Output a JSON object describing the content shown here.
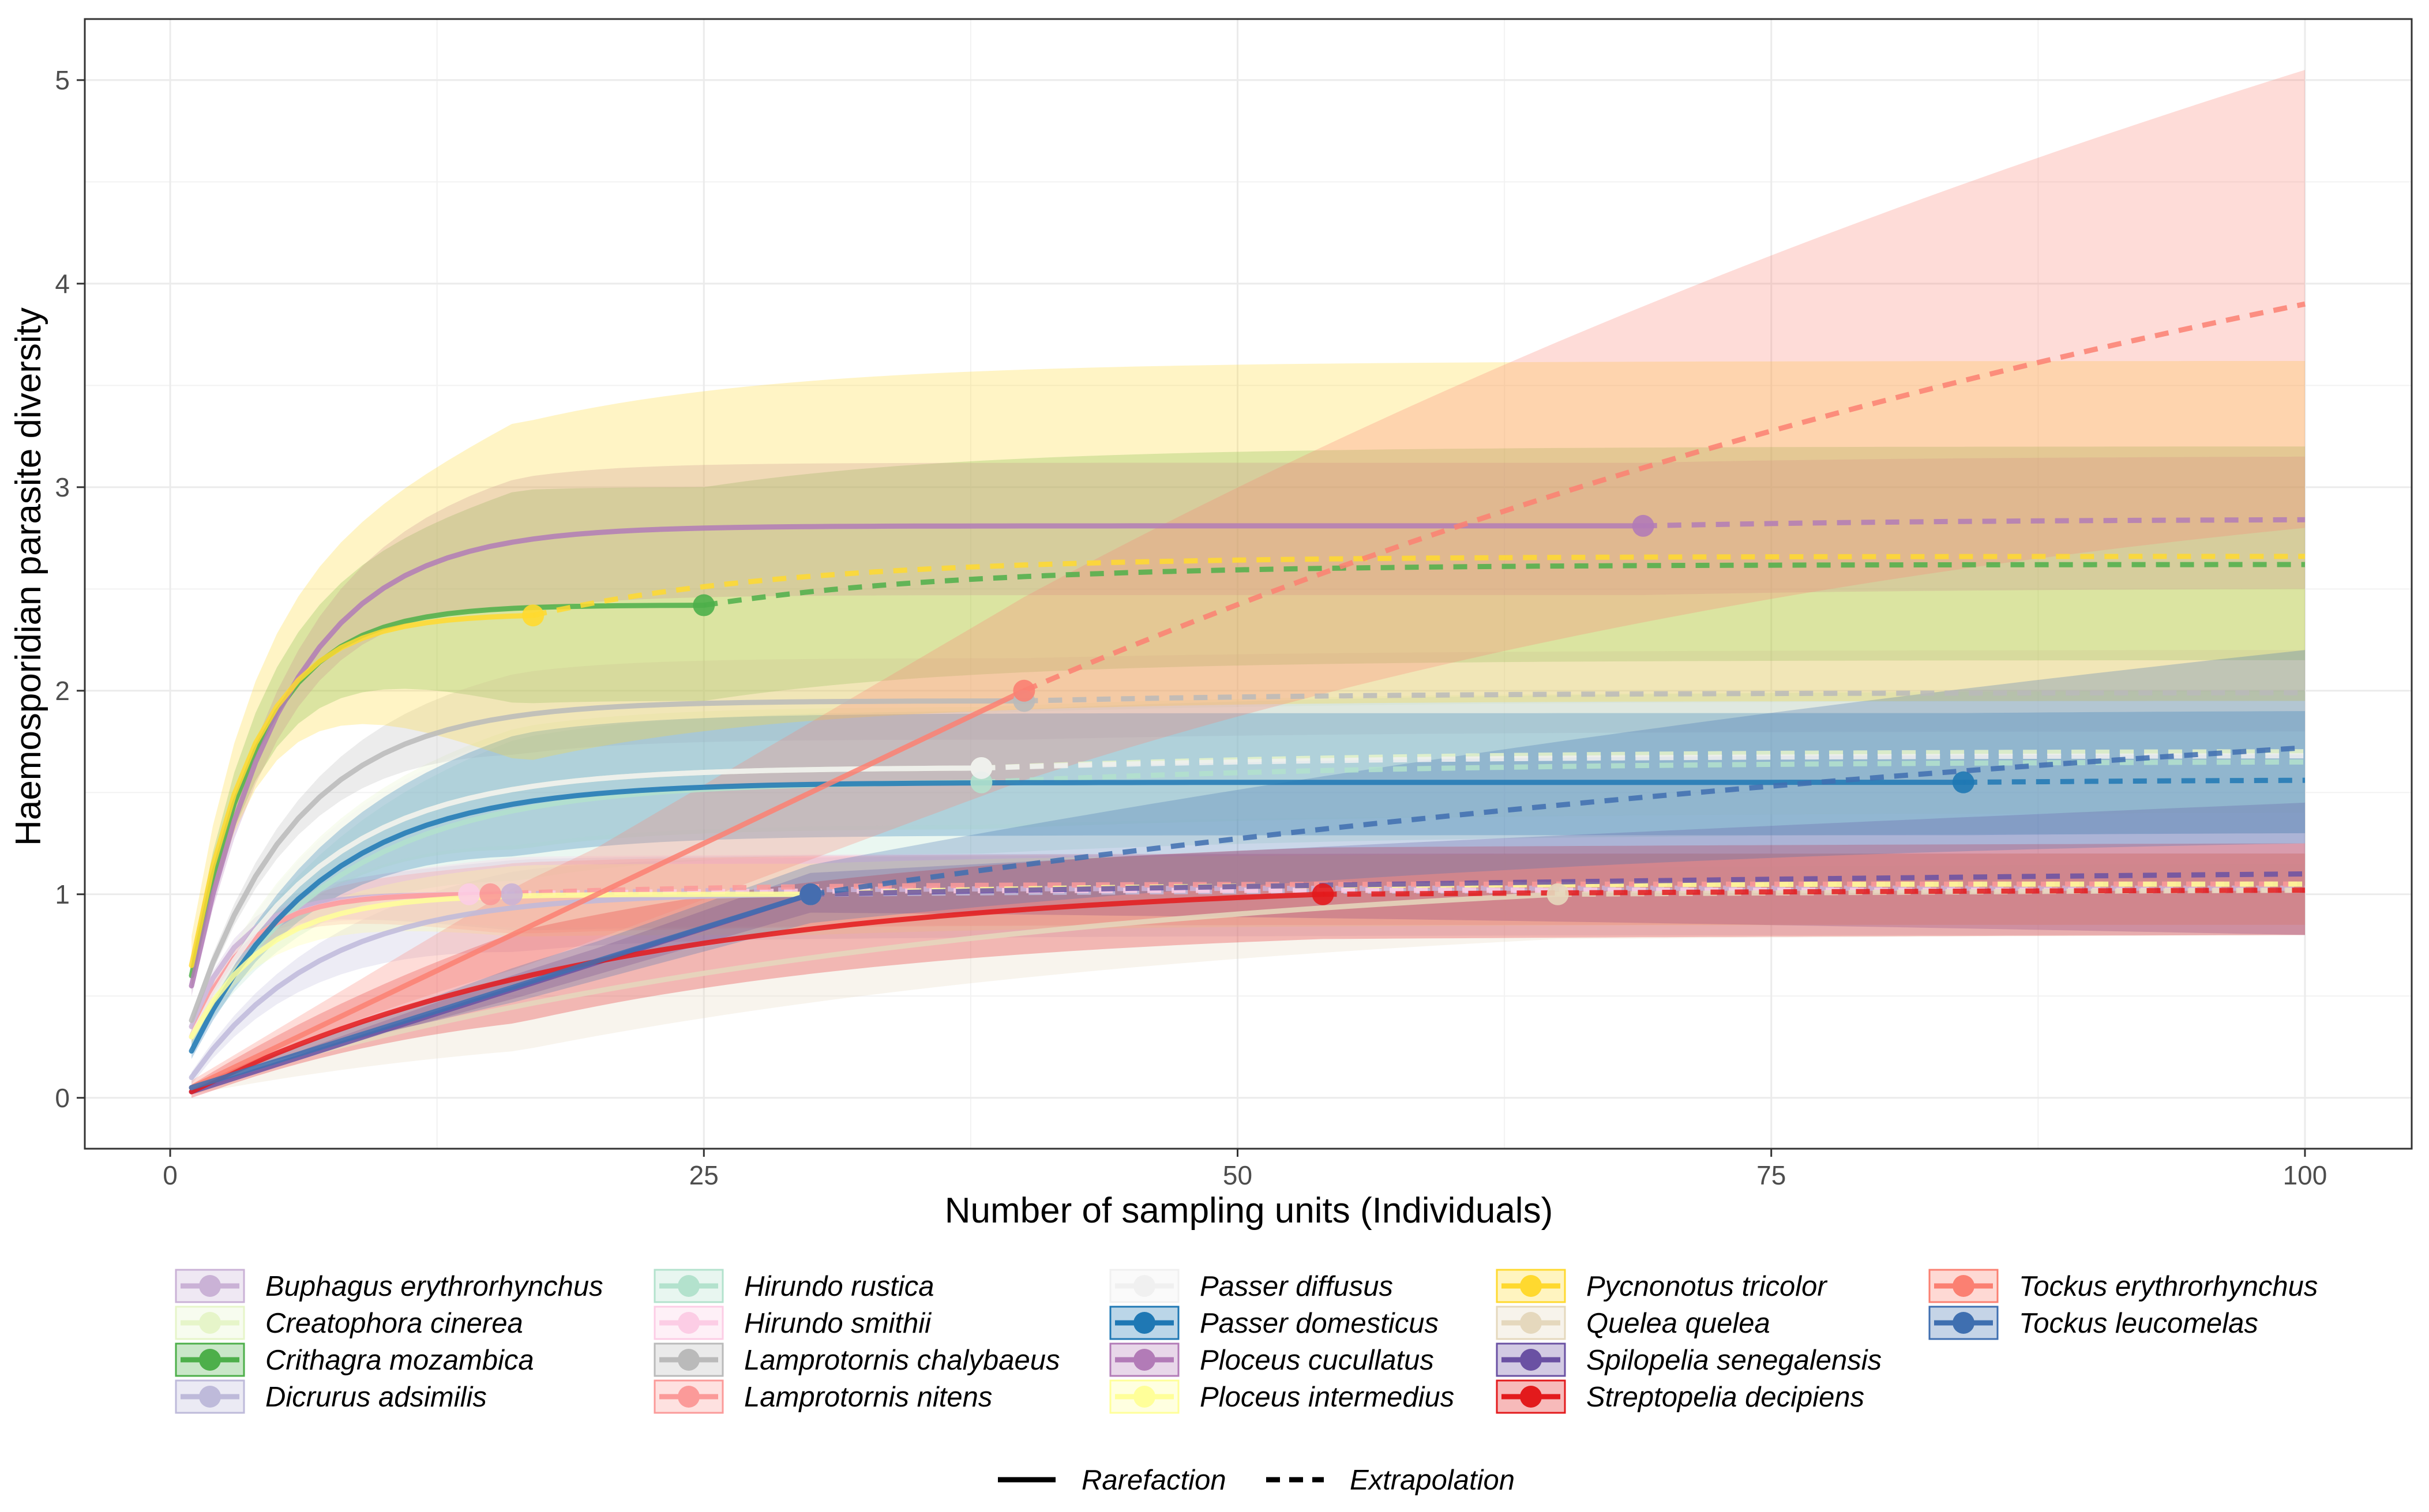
{
  "chart_data": {
    "type": "line",
    "title": "",
    "xlabel": "Number of sampling units (Individuals)",
    "ylabel": "Haemosporidian parasite diversity",
    "xlim": [
      -4,
      105
    ],
    "ylim": [
      -0.25,
      5.3
    ],
    "x_ticks": [
      0,
      25,
      50,
      75,
      100
    ],
    "y_ticks": [
      0,
      1,
      2,
      3,
      4,
      5
    ],
    "x_tick_labels": [
      "0",
      "25",
      "50",
      "75",
      "100"
    ],
    "y_tick_labels": [
      "0",
      "1",
      "2",
      "3",
      "4",
      "5"
    ],
    "grid": true,
    "series": [
      {
        "name": "Buphagus erythrorhynchus",
        "color": "#cab2d6",
        "n_observed": 16,
        "observed": 1.0,
        "asymptote": 1.03,
        "y1": 0.35,
        "lower": 0.85,
        "upper": 1.2,
        "k": 2.2,
        "linear": false
      },
      {
        "name": "Creatophora cinerea",
        "color": "#e6f5c9",
        "n_observed": 38,
        "observed": 1.62,
        "asymptote": 1.7,
        "y1": 0.3,
        "lower": 1.4,
        "upper": 2.0,
        "k": 6,
        "linear": false
      },
      {
        "name": "Crithagra mozambica",
        "color": "#4daf4a",
        "n_observed": 25,
        "observed": 2.42,
        "asymptote": 2.62,
        "y1": 0.6,
        "lower": 2.15,
        "upper": 3.2,
        "k": 3.2,
        "linear": false
      },
      {
        "name": "Dicrurus adsimilis",
        "color": "#bebada",
        "n_observed": 30,
        "observed": 1.0,
        "asymptote": 1.02,
        "y1": 0.1,
        "lower": 0.8,
        "upper": 1.2,
        "k": 6,
        "linear": false
      },
      {
        "name": "Hirundo rustica",
        "color": "#b3e2cd",
        "n_observed": 38,
        "observed": 1.55,
        "asymptote": 1.65,
        "y1": 0.3,
        "lower": 1.3,
        "upper": 2.0,
        "k": 7,
        "linear": false
      },
      {
        "name": "Hirundo smithii",
        "color": "#fccde5",
        "n_observed": 14,
        "observed": 1.0,
        "asymptote": 1.02,
        "y1": 0.3,
        "lower": 0.85,
        "upper": 1.2,
        "k": 2.5,
        "linear": false
      },
      {
        "name": "Lamprotornis chalybaeus",
        "color": "#bababa",
        "n_observed": 40,
        "observed": 1.95,
        "asymptote": 1.99,
        "y1": 0.38,
        "lower": 1.8,
        "upper": 2.2,
        "k": 5,
        "linear": false
      },
      {
        "name": "Lamprotornis nitens",
        "color": "#fb9a99",
        "n_observed": 15,
        "observed": 1.0,
        "asymptote": 1.05,
        "y1": 0.3,
        "lower": 0.85,
        "upper": 1.2,
        "k": 2.5,
        "linear": false
      },
      {
        "name": "Passer diffusus",
        "color": "#f0f0f0",
        "n_observed": 38,
        "observed": 1.62,
        "asymptote": 1.68,
        "y1": 0.3,
        "lower": 1.4,
        "upper": 1.95,
        "k": 6,
        "linear": false
      },
      {
        "name": "Passer domesticus",
        "color": "#1f78b4",
        "n_observed": 84,
        "observed": 1.55,
        "asymptote": 1.56,
        "y1": 0.23,
        "lower": 1.3,
        "upper": 1.9,
        "k": 6,
        "linear": false
      },
      {
        "name": "Ploceus cucullatus",
        "color": "#b27bb7",
        "n_observed": 69,
        "observed": 2.81,
        "asymptote": 2.84,
        "y1": 0.55,
        "lower": 2.5,
        "upper": 3.15,
        "k": 4.5,
        "linear": false
      },
      {
        "name": "Ploceus intermedius",
        "color": "#ffff99",
        "n_observed": 30,
        "observed": 1.0,
        "asymptote": 1.05,
        "y1": 0.3,
        "lower": 0.85,
        "upper": 1.2,
        "k": 3.5,
        "linear": false
      },
      {
        "name": "Pycnonotus tricolor",
        "color": "#ffd92f",
        "n_observed": 17,
        "observed": 2.37,
        "asymptote": 2.66,
        "y1": 0.65,
        "lower": 1.95,
        "upper": 3.62,
        "k": 3.0,
        "linear": false
      },
      {
        "name": "Quelea quelea",
        "color": "#e5d8bd",
        "n_observed": 65,
        "observed": 1.0,
        "asymptote": 1.02,
        "y1": 0.05,
        "lower": 0.8,
        "upper": 1.15,
        "k": 35,
        "linear": false
      },
      {
        "name": "Spilopelia senegalensis",
        "color": "#6a51a3",
        "n_observed": 30,
        "observed": 1.0,
        "asymptote": 1.1,
        "y1": 0.03,
        "lower": 0.8,
        "upper": 1.45,
        "k": 0,
        "linear": true
      },
      {
        "name": "Streptopelia decipiens",
        "color": "#e31a1c",
        "n_observed": 54,
        "observed": 1.0,
        "asymptote": 1.02,
        "y1": 0.03,
        "lower": 0.8,
        "upper": 1.25,
        "k": 20,
        "linear": false
      },
      {
        "name": "Tockus erythrorhynchus",
        "color": "#fb8072",
        "n_observed": 40,
        "observed": 2.0,
        "asymptote": 3.9,
        "y1": 0.05,
        "lower": 2.8,
        "upper": 5.05,
        "k": 0,
        "linear": true
      },
      {
        "name": "Tockus leucomelas",
        "color": "#3f6fb0",
        "n_observed": 30,
        "observed": 1.0,
        "asymptote": 1.72,
        "y1": 0.05,
        "lower": 1.25,
        "upper": 2.2,
        "k": 0,
        "linear": true
      }
    ],
    "linetype_legend": [
      {
        "label": "Rarefaction",
        "style": "solid"
      },
      {
        "label": "Extrapolation",
        "style": "dashed"
      }
    ]
  }
}
